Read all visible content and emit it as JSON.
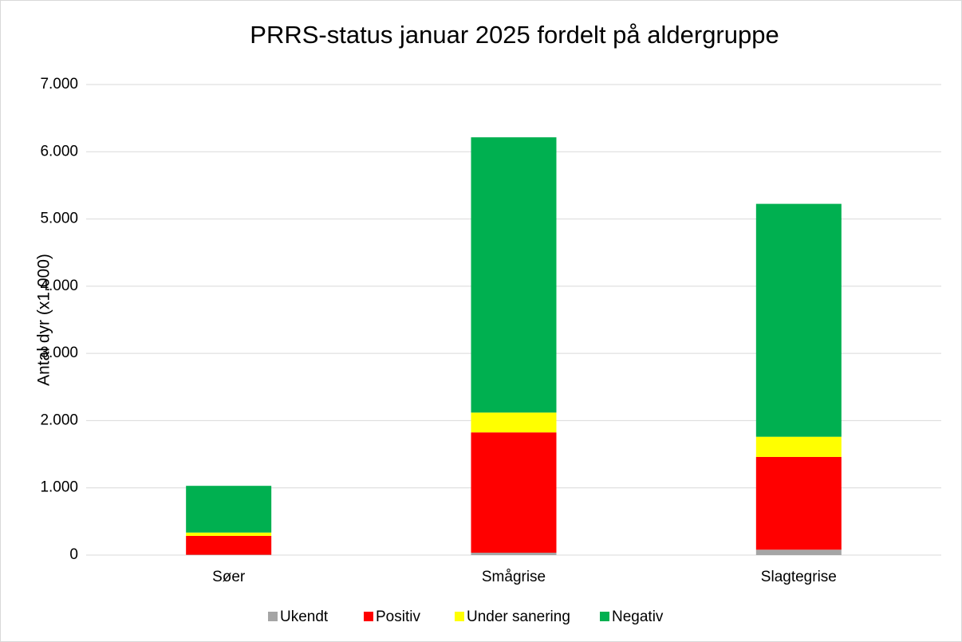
{
  "chart_data": {
    "type": "stacked_bar",
    "title": "PRRS-status januar 2025 fordelt på aldergruppe",
    "y_label": "Antal dyr (x1.000)",
    "categories": [
      "Søer",
      "Smågrise",
      "Slagtegrise"
    ],
    "series": [
      {
        "name": "Ukendt",
        "color": "#a5a5a5",
        "values": [
          5,
          35,
          80
        ]
      },
      {
        "name": "Positiv",
        "color": "#ff0000",
        "values": [
          280,
          1790,
          1380
        ]
      },
      {
        "name": "Under sanering",
        "color": "#ffff00",
        "values": [
          50,
          295,
          300
        ]
      },
      {
        "name": "Negativ",
        "color": "#00b050",
        "values": [
          695,
          4095,
          3465
        ]
      }
    ],
    "ylim": [
      0,
      7000
    ],
    "yticks": [
      0,
      {
        "value": 1000,
        "label": "1.000"
      },
      {
        "value": 2000,
        "label": "2.000"
      },
      {
        "value": 3000,
        "label": "3.000"
      },
      {
        "value": 4000,
        "label": "4.000"
      },
      {
        "value": 5000,
        "label": "5.000"
      },
      {
        "value": 6000,
        "label": "6.000"
      },
      {
        "value": 7000,
        "label": "7.000"
      }
    ],
    "grid": true,
    "legend": "bottom"
  }
}
